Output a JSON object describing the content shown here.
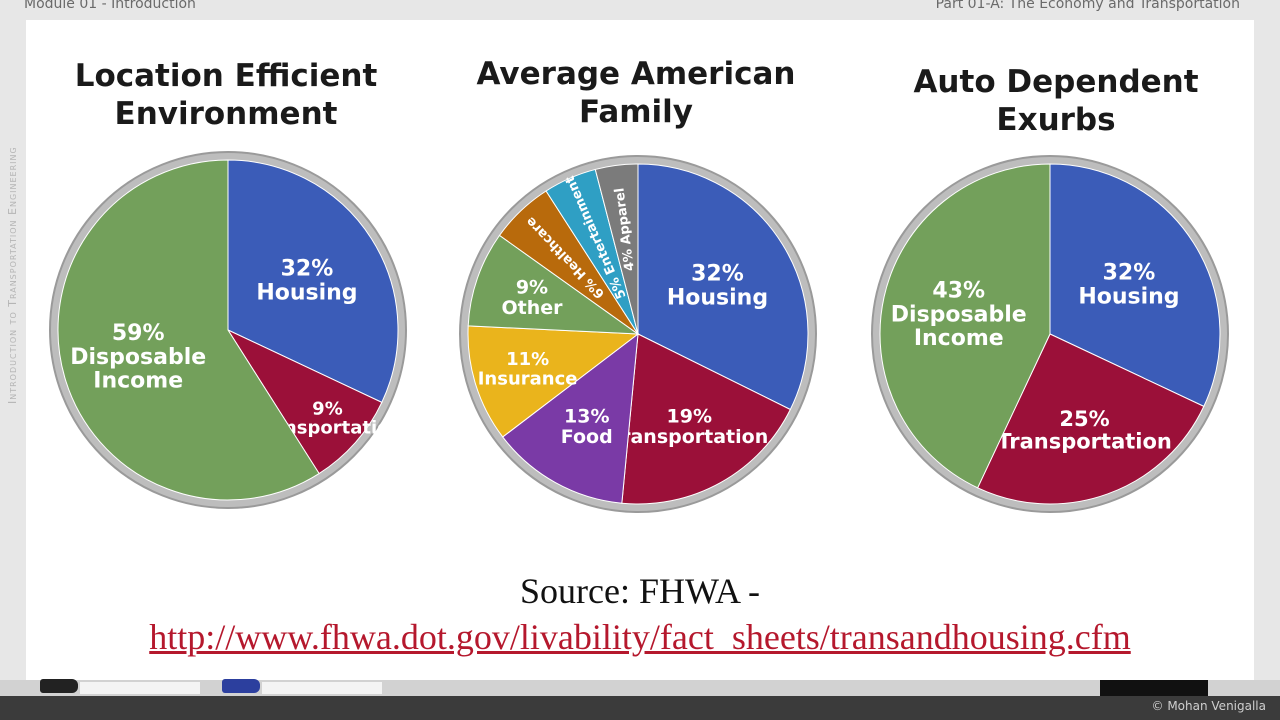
{
  "header": {
    "module": "Module 01 - Introduction",
    "part": "Part 01-A: The Economy and Transportation"
  },
  "sidebar_text": "Introduction to Transportation Engineering",
  "chart_data": [
    {
      "type": "pie",
      "title": "Location Efficient Environment",
      "title_lines": [
        "Location Efficient",
        "Environment"
      ],
      "slices": [
        {
          "pct": "32%",
          "label": "Housing",
          "value": 32,
          "color": "#3b5cb8"
        },
        {
          "pct": "9%",
          "label": "Transportation",
          "value": 9,
          "color": "#9b1039"
        },
        {
          "pct": "59%",
          "label": "Disposable Income",
          "lines": [
            "Disposable",
            "Income"
          ],
          "value": 59,
          "color": "#73a05b"
        }
      ]
    },
    {
      "type": "pie",
      "title": "Average American Family",
      "title_lines": [
        "Average American",
        "Family"
      ],
      "slices": [
        {
          "pct": "32%",
          "label": "Housing",
          "value": 32,
          "color": "#3b5cb8"
        },
        {
          "pct": "19%",
          "label": "Transportation",
          "value": 19,
          "color": "#9b1039"
        },
        {
          "pct": "13%",
          "label": "Food",
          "value": 13,
          "color": "#7a3aa6"
        },
        {
          "pct": "11%",
          "label": "Insurance",
          "value": 11,
          "color": "#eab41c"
        },
        {
          "pct": "9%",
          "label": "Other",
          "value": 9,
          "color": "#73a05b"
        },
        {
          "pct": "6%",
          "label": "Healthcare",
          "value": 6,
          "color": "#b86a0c"
        },
        {
          "pct": "5%",
          "label": "Entertainment",
          "value": 5,
          "color": "#2f9fc4"
        },
        {
          "pct": "4%",
          "label": "Apparel",
          "value": 4,
          "color": "#7b7b7b"
        }
      ]
    },
    {
      "type": "pie",
      "title": "Auto Dependent Exurbs",
      "title_lines": [
        "Auto Dependent",
        "Exurbs"
      ],
      "slices": [
        {
          "pct": "32%",
          "label": "Housing",
          "value": 32,
          "color": "#3b5cb8"
        },
        {
          "pct": "25%",
          "label": "Transportation",
          "value": 25,
          "color": "#9b1039"
        },
        {
          "pct": "43%",
          "label": "Disposable Income",
          "lines": [
            "Disposable",
            "Income"
          ],
          "value": 43,
          "color": "#73a05b"
        }
      ]
    }
  ],
  "source": "Source: FHWA -",
  "url": "http://www.fhwa.dot.gov/livability/fact_sheets/transandhousing.cfm",
  "copyright": "© Mohan Venigalla"
}
